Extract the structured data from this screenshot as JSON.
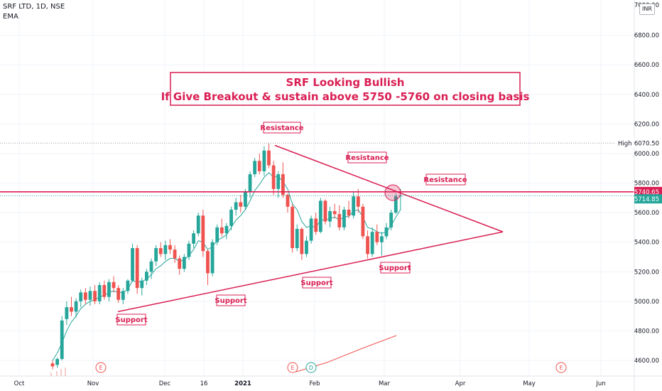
{
  "header": {
    "symbol": "SRF LTD, 1D, NSE",
    "indicator": "EMA",
    "currency": "INR"
  },
  "colors": {
    "up": "#26a69a",
    "down": "#ef5350",
    "ema": "#26a69a",
    "annotation": "#d91f53",
    "volume_line": "#ef5350"
  },
  "chart_data": {
    "type": "candlestick",
    "y_axis": {
      "ticks": [
        4600,
        4800,
        5000,
        5200,
        5400,
        5600,
        5800,
        6000,
        6200,
        6400,
        6600,
        6800
      ],
      "tick_labels": [
        "4600.00",
        "4800.00",
        "5000.00",
        "5200.00",
        "5400.00",
        "5600.00",
        "5800.00",
        "6000.00",
        "6200.00",
        "6400.00",
        "6600.00",
        "6800.00"
      ],
      "top_partial_label": "7000.00",
      "range": [
        4550,
        7020
      ]
    },
    "x_axis": {
      "labels": [
        "Oct",
        "Nov",
        "Dec",
        "16",
        "2021",
        "Feb",
        "Mar",
        "Apr",
        "May",
        "Jun"
      ],
      "bold": [
        "2021"
      ]
    },
    "price_labels": [
      {
        "label": "High",
        "value": "6070.50",
        "kind": "high"
      },
      {
        "label": "",
        "value": "5740.65",
        "kind": "line"
      },
      {
        "label": "",
        "value": "5714.85",
        "kind": "last"
      }
    ],
    "levels": [
      6070.5,
      5740.65,
      5714.85
    ],
    "ohlc": [
      [
        4580,
        4600,
        4540,
        4560
      ],
      [
        4570,
        4620,
        4550,
        4610
      ],
      [
        4610,
        4900,
        4600,
        4870
      ],
      [
        4880,
        5000,
        4840,
        4960
      ],
      [
        4960,
        5030,
        4900,
        4930
      ],
      [
        4930,
        5020,
        4890,
        5000
      ],
      [
        5000,
        5080,
        4960,
        5060
      ],
      [
        5060,
        5090,
        4980,
        5010
      ],
      [
        5010,
        5100,
        4970,
        5070
      ],
      [
        5070,
        5110,
        4980,
        5000
      ],
      [
        5000,
        5130,
        4980,
        5110
      ],
      [
        5110,
        5140,
        5010,
        5030
      ],
      [
        5030,
        5150,
        5000,
        5130
      ],
      [
        5130,
        5170,
        5060,
        5090
      ],
      [
        5090,
        5110,
        4990,
        5010
      ],
      [
        5010,
        5090,
        4980,
        5070
      ],
      [
        5070,
        5150,
        5050,
        5140
      ],
      [
        5140,
        5390,
        5130,
        5360
      ],
      [
        5360,
        5380,
        5050,
        5090
      ],
      [
        5090,
        5160,
        5040,
        5140
      ],
      [
        5140,
        5220,
        5110,
        5200
      ],
      [
        5200,
        5290,
        5150,
        5270
      ],
      [
        5270,
        5380,
        5240,
        5360
      ],
      [
        5360,
        5400,
        5300,
        5320
      ],
      [
        5320,
        5410,
        5280,
        5380
      ],
      [
        5380,
        5420,
        5320,
        5350
      ],
      [
        5350,
        5380,
        5260,
        5290
      ],
      [
        5290,
        5310,
        5180,
        5220
      ],
      [
        5220,
        5320,
        5200,
        5300
      ],
      [
        5300,
        5410,
        5280,
        5390
      ],
      [
        5390,
        5480,
        5360,
        5460
      ],
      [
        5460,
        5600,
        5440,
        5580
      ],
      [
        5580,
        5620,
        5300,
        5340
      ],
      [
        5340,
        5350,
        5110,
        5190
      ],
      [
        5190,
        5420,
        5170,
        5400
      ],
      [
        5400,
        5520,
        5380,
        5500
      ],
      [
        5500,
        5560,
        5440,
        5460
      ],
      [
        5460,
        5530,
        5420,
        5510
      ],
      [
        5510,
        5640,
        5480,
        5620
      ],
      [
        5620,
        5700,
        5580,
        5670
      ],
      [
        5670,
        5720,
        5600,
        5640
      ],
      [
        5640,
        5760,
        5620,
        5740
      ],
      [
        5740,
        5880,
        5700,
        5860
      ],
      [
        5860,
        5970,
        5840,
        5950
      ],
      [
        5950,
        6000,
        5860,
        5880
      ],
      [
        5880,
        6050,
        5850,
        6020
      ],
      [
        6020,
        6070,
        5900,
        5920
      ],
      [
        5920,
        5950,
        5720,
        5760
      ],
      [
        5760,
        5880,
        5700,
        5860
      ],
      [
        5860,
        5940,
        5700,
        5720
      ],
      [
        5720,
        5730,
        5600,
        5640
      ],
      [
        5640,
        5660,
        5330,
        5360
      ],
      [
        5360,
        5520,
        5340,
        5490
      ],
      [
        5490,
        5500,
        5280,
        5320
      ],
      [
        5320,
        5440,
        5300,
        5410
      ],
      [
        5410,
        5580,
        5390,
        5560
      ],
      [
        5560,
        5600,
        5450,
        5470
      ],
      [
        5470,
        5700,
        5460,
        5680
      ],
      [
        5680,
        5690,
        5520,
        5540
      ],
      [
        5540,
        5640,
        5500,
        5610
      ],
      [
        5610,
        5660,
        5560,
        5590
      ],
      [
        5590,
        5650,
        5480,
        5500
      ],
      [
        5500,
        5640,
        5480,
        5620
      ],
      [
        5620,
        5680,
        5560,
        5580
      ],
      [
        5580,
        5740,
        5560,
        5710
      ],
      [
        5710,
        5760,
        5600,
        5640
      ],
      [
        5640,
        5660,
        5420,
        5440
      ],
      [
        5440,
        5480,
        5290,
        5320
      ],
      [
        5320,
        5500,
        5300,
        5470
      ],
      [
        5470,
        5520,
        5380,
        5400
      ],
      [
        5400,
        5470,
        5310,
        5440
      ],
      [
        5440,
        5530,
        5420,
        5500
      ],
      [
        5500,
        5620,
        5480,
        5600
      ],
      [
        5600,
        5730,
        5590,
        5710
      ],
      [
        5710,
        5760,
        5620,
        5715
      ]
    ],
    "ema": [
      4600,
      4650,
      4720,
      4800,
      4860,
      4900,
      4950,
      4980,
      5000,
      5010,
      5030,
      5040,
      5060,
      5070,
      5060,
      5060,
      5080,
      5140,
      5130,
      5135,
      5150,
      5180,
      5220,
      5240,
      5270,
      5290,
      5290,
      5270,
      5280,
      5310,
      5350,
      5410,
      5400,
      5350,
      5370,
      5410,
      5430,
      5450,
      5500,
      5550,
      5580,
      5620,
      5680,
      5750,
      5790,
      5840,
      5870,
      5840,
      5845,
      5810,
      5760,
      5660,
      5620,
      5540,
      5500,
      5510,
      5500,
      5550,
      5550,
      5560,
      5570,
      5550,
      5570,
      5575,
      5610,
      5620,
      5570,
      5500,
      5490,
      5470,
      5460,
      5470,
      5510,
      5570,
      5620
    ],
    "volume_line": [
      [
        0.0,
        4560
      ],
      [
        0.5,
        4640
      ],
      [
        1.0,
        4700
      ],
      [
        1.5,
        4760
      ]
    ]
  },
  "annotations": {
    "title_line1": "SRF Looking Bullish",
    "title_line2": "If Give Breakout & sustain above 5750 -5760 on closing basis",
    "resistance_top": "Resistance",
    "resistance_mid": "Resistance",
    "resistance_right": "Resistance",
    "support_left": "Support",
    "support_mid1": "Support",
    "support_mid2": "Support",
    "support_right": "Support",
    "earnings_markers": [
      "E",
      "E",
      "D",
      "E"
    ]
  }
}
